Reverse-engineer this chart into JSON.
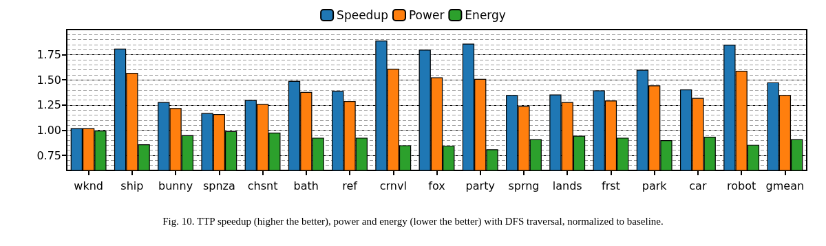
{
  "chart_data": {
    "type": "bar",
    "categories": [
      "wknd",
      "ship",
      "bunny",
      "spnza",
      "chsnt",
      "bath",
      "ref",
      "crnvl",
      "fox",
      "party",
      "sprng",
      "lands",
      "frst",
      "park",
      "car",
      "robot",
      "gmean"
    ],
    "series": [
      {
        "name": "Speedup",
        "color": "#1f77b4",
        "values": [
          1.02,
          1.81,
          1.28,
          1.17,
          1.3,
          1.49,
          1.39,
          1.89,
          1.8,
          1.86,
          1.35,
          1.355,
          1.395,
          1.6,
          1.405,
          1.85,
          1.475
        ]
      },
      {
        "name": "Power",
        "color": "#ff7f0e",
        "values": [
          1.02,
          1.57,
          1.22,
          1.16,
          1.26,
          1.38,
          1.29,
          1.61,
          1.525,
          1.51,
          1.24,
          1.28,
          1.295,
          1.445,
          1.32,
          1.59,
          1.35
        ]
      },
      {
        "name": "Energy",
        "color": "#2ca02c",
        "values": [
          0.995,
          0.86,
          0.95,
          0.99,
          0.975,
          0.925,
          0.925,
          0.85,
          0.845,
          0.81,
          0.91,
          0.945,
          0.925,
          0.9,
          0.935,
          0.855,
          0.91
        ]
      }
    ],
    "ylim": [
      0.6,
      2.0
    ],
    "yticks": [
      {
        "value": 0.75,
        "label": "0.75"
      },
      {
        "value": 1.0,
        "label": "1.00"
      },
      {
        "value": 1.25,
        "label": "1.25"
      },
      {
        "value": 1.5,
        "label": "1.50"
      },
      {
        "value": 1.75,
        "label": "1.75"
      }
    ],
    "grid": "y",
    "legend": "top",
    "annotations": [
      "Fig. 10.  TTP speedup (higher the better), power and energy (lower the better) with DFS traversal, normalized to baseline."
    ]
  }
}
